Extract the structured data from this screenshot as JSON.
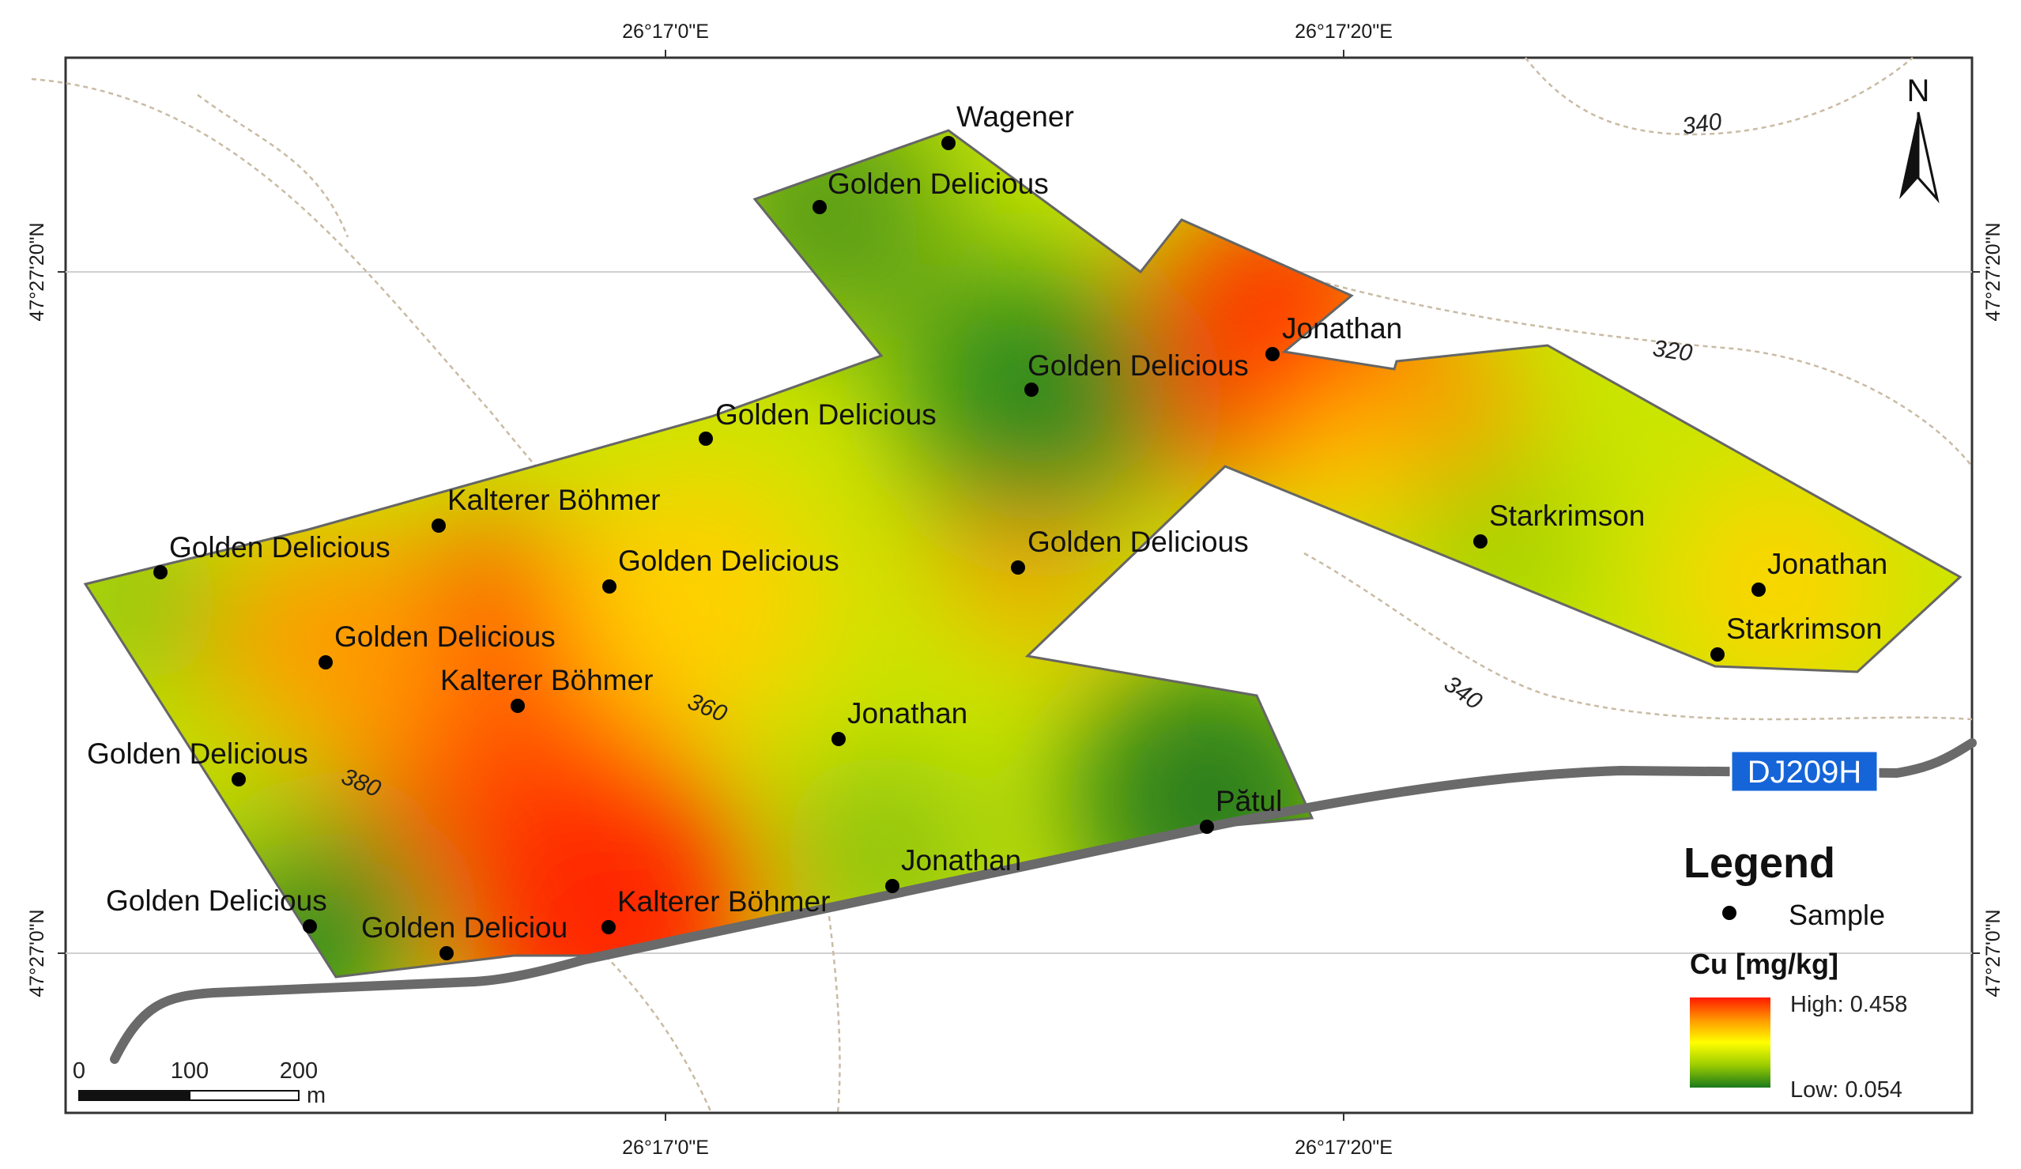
{
  "coordinates": {
    "top": [
      "26°17'0\"E",
      "26°17'20\"E"
    ],
    "bottom": [
      "26°17'0\"E",
      "26°17'20\"E"
    ],
    "left": [
      "47°27'20\"N",
      "47°27'0\"N"
    ],
    "right": [
      "47°27'20\"N",
      "47°27'0\"N"
    ]
  },
  "north_arrow": {
    "label": "N",
    "icon": "north-arrow-icon"
  },
  "contours": [
    "340",
    "320",
    "340",
    "360",
    "380"
  ],
  "road": {
    "label": "DJ209H",
    "badge_color": "#1565d8",
    "road_color": "#666666"
  },
  "samples": [
    "Wagener",
    "Golden Delicious",
    "Jonathan",
    "Golden Delicious",
    "Golden Delicious",
    "Kalterer Böhmer",
    "Golden Delicious",
    "Golden Delicious",
    "Golden Delicious",
    "Starkrimson",
    "Jonathan",
    "Starkrimson",
    "Golden Delicious",
    "Kalterer Böhmer",
    "Jonathan",
    "Golden Delicious",
    "Pătul",
    "Jonathan",
    "Golden Delicious",
    "Golden Deliciou",
    "Kalterer Böhmer"
  ],
  "legend": {
    "title": "Legend",
    "sample_label": "Sample",
    "variable_label": "Cu [mg/kg]",
    "high_label": "High: 0.458",
    "low_label": "Low: 0.054",
    "ramp_colors": [
      "#ff1a00",
      "#ff9800",
      "#ffff00",
      "#9ccc00",
      "#1b7a1b"
    ]
  },
  "scale_bar": {
    "ticks": [
      "0",
      "100",
      "200"
    ],
    "unit": "m"
  }
}
